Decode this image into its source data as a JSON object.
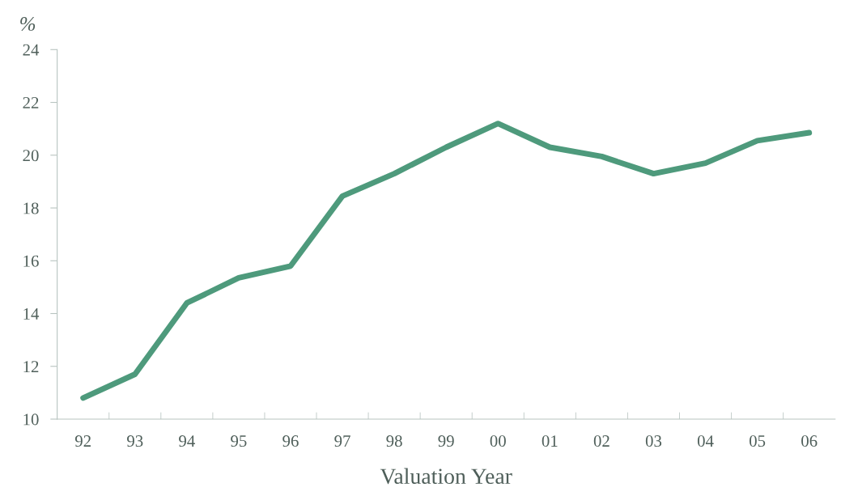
{
  "chart_data": {
    "type": "line",
    "xlabel": "Valuation Year",
    "ylabel": "%",
    "categories": [
      "92",
      "93",
      "94",
      "95",
      "96",
      "97",
      "98",
      "99",
      "00",
      "01",
      "02",
      "03",
      "04",
      "05",
      "06"
    ],
    "series": [
      {
        "color": "#4e9a7c",
        "values": [
          10.8,
          11.7,
          14.4,
          15.35,
          15.8,
          18.45,
          19.3,
          20.3,
          21.2,
          20.3,
          19.95,
          19.3,
          19.7,
          20.55,
          20.85
        ]
      }
    ],
    "ylim": [
      10,
      24
    ],
    "yticks": [
      10,
      12,
      14,
      16,
      18,
      20,
      22,
      24
    ],
    "grid": false,
    "marker": "none",
    "line_style": "solid"
  }
}
